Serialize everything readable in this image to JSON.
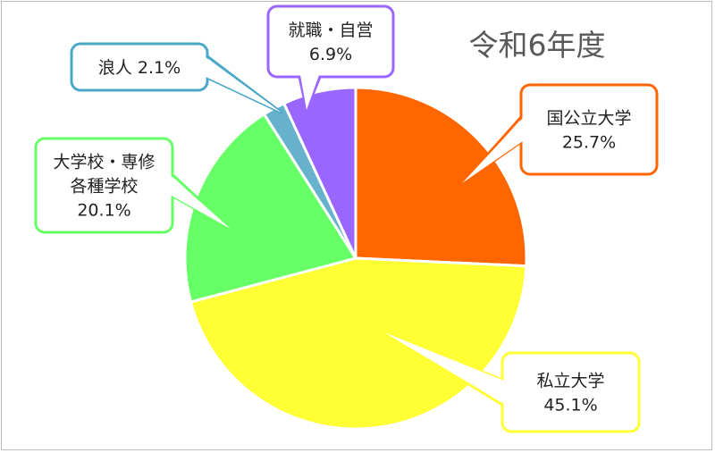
{
  "chart_data": {
    "type": "pie",
    "title": "令和6年度",
    "start_angle_deg": 0,
    "direction": "clockwise",
    "slices": [
      {
        "label": "国公立大学",
        "value": 25.7,
        "value_label": "25.7%",
        "color": "#ff6600",
        "callout_border": "#ff6600",
        "label_lines": [
          "国公立大学"
        ]
      },
      {
        "label": "私立大学",
        "value": 45.1,
        "value_label": "45.1%",
        "color": "#ffff33",
        "callout_border": "#ffff33",
        "label_lines": [
          "私立大学"
        ]
      },
      {
        "label": "大学校・専修各種学校",
        "value": 20.1,
        "value_label": "20.1%",
        "color": "#66ff66",
        "callout_border": "#66ff66",
        "label_lines": [
          "大学校・専修",
          "各種学校"
        ]
      },
      {
        "label": "浪人",
        "value": 2.1,
        "value_label": "2.1%",
        "color": "#66b2cc",
        "callout_border": "#4aa7c7",
        "label_lines": [
          "浪人"
        ],
        "inline_value": true
      },
      {
        "label": "就職・自営",
        "value": 6.9,
        "value_label": "6.9%",
        "color": "#9966ff",
        "callout_border": "#9966ff",
        "label_lines": [
          "就職・自営"
        ]
      }
    ]
  }
}
